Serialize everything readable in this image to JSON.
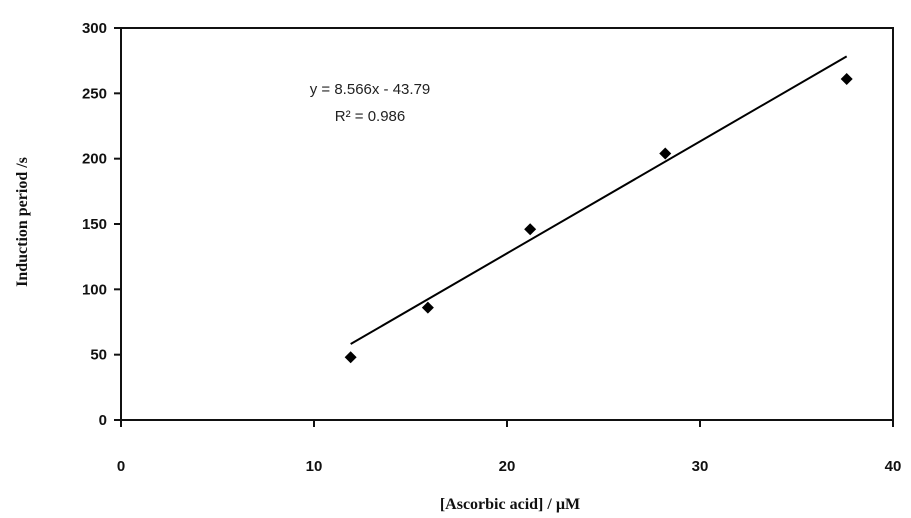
{
  "chart_data": {
    "type": "scatter",
    "title": "",
    "xlabel": "[Ascorbic acid] / µM",
    "ylabel": "Induction period /s",
    "xlim": [
      0,
      40
    ],
    "ylim": [
      0,
      300
    ],
    "x_ticks": [
      0,
      10,
      20,
      30,
      40
    ],
    "y_ticks": [
      0,
      50,
      100,
      150,
      200,
      250,
      300
    ],
    "grid": false,
    "legend": "none",
    "series": [
      {
        "marker": "diamond",
        "color": "#000000",
        "points": [
          {
            "x": 11.9,
            "y": 48
          },
          {
            "x": 15.9,
            "y": 86
          },
          {
            "x": 21.2,
            "y": 146
          },
          {
            "x": 28.2,
            "y": 204
          },
          {
            "x": 37.6,
            "y": 261
          }
        ]
      }
    ],
    "trendline": {
      "slope": 8.566,
      "intercept": -43.79,
      "x_start": 11.9,
      "x_end": 37.6,
      "color": "#000000"
    },
    "annotations": {
      "equation": "y = 8.566x - 43.79",
      "r_squared": "R² = 0.986"
    }
  }
}
